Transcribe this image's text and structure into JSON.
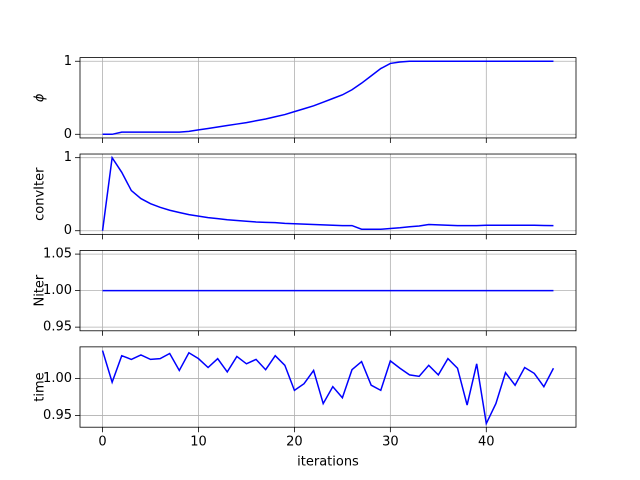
{
  "chart_data": [
    {
      "type": "line",
      "ylabel": "ϕ",
      "x": [
        0,
        1,
        2,
        3,
        4,
        5,
        6,
        7,
        8,
        9,
        10,
        11,
        12,
        13,
        14,
        15,
        16,
        17,
        18,
        19,
        20,
        21,
        22,
        23,
        24,
        25,
        26,
        27,
        28,
        29,
        30,
        31,
        32,
        33,
        34,
        35,
        36,
        37,
        38,
        39,
        40,
        41,
        42,
        43,
        44,
        45,
        46,
        47
      ],
      "values": [
        0,
        0,
        0.03,
        0.03,
        0.03,
        0.03,
        0.03,
        0.03,
        0.03,
        0.04,
        0.06,
        0.08,
        0.1,
        0.12,
        0.14,
        0.16,
        0.185,
        0.21,
        0.24,
        0.27,
        0.31,
        0.35,
        0.39,
        0.44,
        0.49,
        0.54,
        0.61,
        0.7,
        0.8,
        0.9,
        0.97,
        0.99,
        1,
        1,
        1,
        1,
        1,
        1,
        1,
        1,
        1,
        1,
        1,
        1,
        1,
        1,
        1,
        1
      ],
      "color": "#0000ff",
      "xlim": [
        -2.35,
        49.35
      ],
      "xticks": [
        0,
        10,
        20,
        30,
        40
      ],
      "ylim": [
        -0.05,
        1.05
      ],
      "yticks": [
        0,
        1
      ],
      "grid": true
    },
    {
      "type": "line",
      "ylabel": "convIter",
      "x": [
        0,
        1,
        2,
        3,
        4,
        5,
        6,
        7,
        8,
        9,
        10,
        11,
        12,
        13,
        14,
        15,
        16,
        17,
        18,
        19,
        20,
        21,
        22,
        23,
        24,
        25,
        26,
        27,
        28,
        29,
        30,
        31,
        32,
        33,
        34,
        35,
        36,
        37,
        38,
        39,
        40,
        41,
        42,
        43,
        44,
        45,
        46,
        47
      ],
      "values": [
        0,
        1,
        0.8,
        0.55,
        0.44,
        0.37,
        0.32,
        0.28,
        0.25,
        0.22,
        0.2,
        0.18,
        0.165,
        0.15,
        0.14,
        0.13,
        0.12,
        0.115,
        0.11,
        0.1,
        0.095,
        0.09,
        0.085,
        0.08,
        0.075,
        0.07,
        0.07,
        0.02,
        0.02,
        0.02,
        0.03,
        0.04,
        0.055,
        0.065,
        0.085,
        0.08,
        0.075,
        0.07,
        0.07,
        0.07,
        0.075,
        0.075,
        0.075,
        0.075,
        0.075,
        0.075,
        0.072,
        0.07
      ],
      "color": "#0000ff",
      "xlim": [
        -2.35,
        49.35
      ],
      "xticks": [
        0,
        10,
        20,
        30,
        40
      ],
      "ylim": [
        -0.05,
        1.05
      ],
      "yticks": [
        0,
        1
      ],
      "grid": true
    },
    {
      "type": "line",
      "ylabel": "Niter",
      "x": [
        0,
        1,
        2,
        3,
        4,
        5,
        6,
        7,
        8,
        9,
        10,
        11,
        12,
        13,
        14,
        15,
        16,
        17,
        18,
        19,
        20,
        21,
        22,
        23,
        24,
        25,
        26,
        27,
        28,
        29,
        30,
        31,
        32,
        33,
        34,
        35,
        36,
        37,
        38,
        39,
        40,
        41,
        42,
        43,
        44,
        45,
        46,
        47
      ],
      "values": [
        1,
        1,
        1,
        1,
        1,
        1,
        1,
        1,
        1,
        1,
        1,
        1,
        1,
        1,
        1,
        1,
        1,
        1,
        1,
        1,
        1,
        1,
        1,
        1,
        1,
        1,
        1,
        1,
        1,
        1,
        1,
        1,
        1,
        1,
        1,
        1,
        1,
        1,
        1,
        1,
        1,
        1,
        1,
        1,
        1,
        1,
        1,
        1
      ],
      "color": "#0000ff",
      "xlim": [
        -2.35,
        49.35
      ],
      "xticks": [
        0,
        10,
        20,
        30,
        40
      ],
      "ylim": [
        0.945,
        1.055
      ],
      "yticks": [
        0.95,
        {
          "value": 1,
          "label": "1.00"
        },
        1.05
      ],
      "grid": true
    },
    {
      "type": "line",
      "ylabel": "time",
      "xlabel": "iterations",
      "x": [
        0,
        1,
        2,
        3,
        4,
        5,
        6,
        7,
        8,
        9,
        10,
        11,
        12,
        13,
        14,
        15,
        16,
        17,
        18,
        19,
        20,
        21,
        22,
        23,
        24,
        25,
        26,
        27,
        28,
        29,
        30,
        31,
        32,
        33,
        34,
        35,
        36,
        37,
        38,
        39,
        40,
        41,
        42,
        43,
        44,
        45,
        46,
        47
      ],
      "values": [
        1.038,
        0.995,
        1.031,
        1.026,
        1.032,
        1.026,
        1.027,
        1.034,
        1.011,
        1.035,
        1.027,
        1.015,
        1.027,
        1.009,
        1.03,
        1.02,
        1.026,
        1.012,
        1.031,
        1.018,
        0.984,
        0.993,
        1.011,
        0.966,
        0.989,
        0.974,
        1.012,
        1.023,
        0.991,
        0.984,
        1.024,
        1.014,
        1.005,
        1.003,
        1.018,
        1.005,
        1.027,
        1.014,
        0.964,
        1.02,
        0.939,
        0.966,
        1.008,
        0.991,
        1.015,
        1.007,
        0.989,
        1.014
      ],
      "color": "#0000ff",
      "xlim": [
        -2.35,
        49.35
      ],
      "xticks": [
        0,
        10,
        20,
        30,
        40
      ],
      "ylim": [
        0.934,
        1.043
      ],
      "yticks": [
        0.95,
        {
          "value": 1,
          "label": "1.00"
        }
      ],
      "grid": true
    }
  ]
}
